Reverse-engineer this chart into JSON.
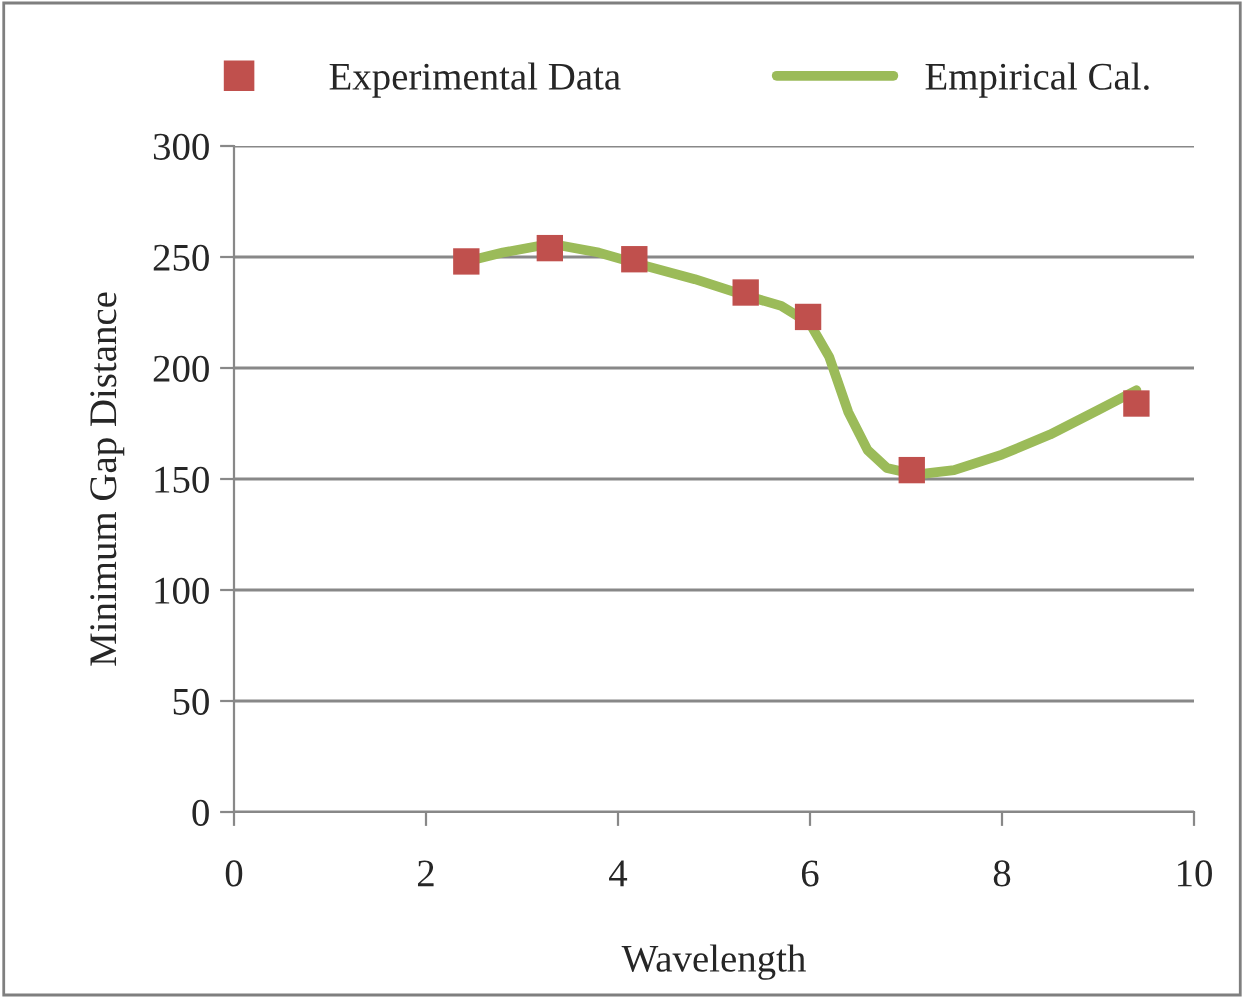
{
  "chart_data": {
    "type": "line",
    "xlabel": "Wavelength",
    "ylabel": "Minimum Gap Distance",
    "series": [
      {
        "name": "Experimental Data",
        "type": "scatter",
        "color": "#c0504d",
        "marker": "square",
        "x": [
          2.42,
          3.29,
          4.17,
          5.33,
          5.98,
          7.06,
          9.4
        ],
        "values": [
          248,
          254,
          249,
          234,
          223,
          154,
          184
        ]
      },
      {
        "name": "Empirical Cal.",
        "color": "#9bbb59",
        "marker": "none",
        "x": [
          2.42,
          2.8,
          3.3,
          3.8,
          4.2,
          4.8,
          5.3,
          5.7,
          6.0,
          6.2,
          6.4,
          6.6,
          6.8,
          7.1,
          7.5,
          8.0,
          8.5,
          9.0,
          9.4
        ],
        "values": [
          248,
          252,
          256,
          252,
          247,
          240,
          233,
          228,
          220,
          205,
          180,
          163,
          155,
          152,
          154,
          161,
          170,
          181,
          190
        ]
      }
    ],
    "xlim": [
      0,
      10
    ],
    "xticks": [
      0,
      2,
      4,
      6,
      8,
      10
    ],
    "ylim": [
      0,
      300
    ],
    "yticks": [
      0,
      50,
      100,
      150,
      200,
      250,
      300
    ],
    "grid": "y",
    "legend": "top"
  }
}
